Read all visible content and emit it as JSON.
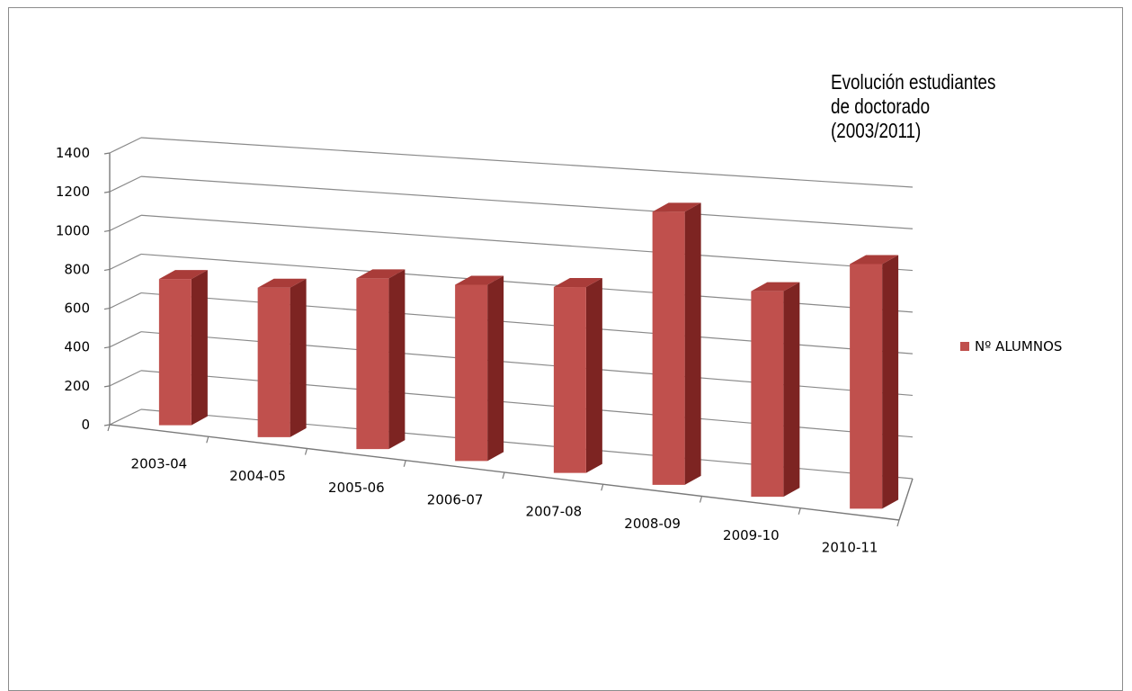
{
  "chart_data": {
    "type": "bar",
    "title": "Evolución estudiantes de doctorado (2003/2011)",
    "title_lines": [
      "Evolución estudiantes",
      "de doctorado",
      "(2003/2011)"
    ],
    "categories": [
      "2003-04",
      "2004-05",
      "2005-06",
      "2006-07",
      "2007-08",
      "2008-09",
      "2009-10",
      "2010-11"
    ],
    "series": [
      {
        "name": "Nº ALUMNOS",
        "values": [
          750,
          760,
          860,
          880,
          920,
          1340,
          1000,
          1180
        ],
        "color": "#c0504d"
      }
    ],
    "y_ticks": [
      "0",
      "200",
      "400",
      "600",
      "800",
      "1000",
      "1200",
      "1400"
    ],
    "ylim": [
      0,
      1400
    ],
    "grid": true,
    "legend_position": "right",
    "style": "3d-column"
  }
}
